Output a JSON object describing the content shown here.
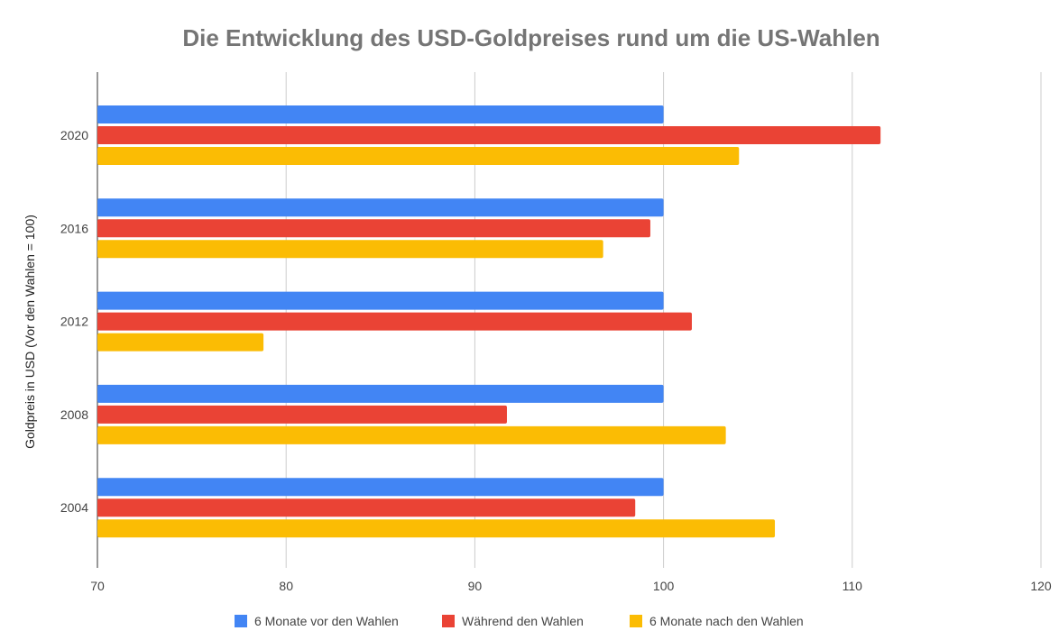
{
  "chart_data": {
    "type": "bar",
    "orientation": "horizontal",
    "title": "Die Entwicklung des USD-Goldpreises rund um die US-Wahlen",
    "xlabel": "",
    "ylabel": "Goldpreis in USD (Vor den Wahlen = 100)",
    "xlim": [
      70,
      120
    ],
    "xticks": [
      70,
      80,
      90,
      100,
      110,
      120
    ],
    "grid": true,
    "legend_position": "bottom",
    "categories": [
      "2020",
      "2016",
      "2012",
      "2008",
      "2004"
    ],
    "series": [
      {
        "name": "6 Monate vor den Wahlen",
        "color": "#4285f4",
        "values": [
          100,
          100,
          100,
          100,
          100
        ]
      },
      {
        "name": "Während den Wahlen",
        "color": "#ea4335",
        "values": [
          111.5,
          99.3,
          101.5,
          91.7,
          98.5
        ]
      },
      {
        "name": "6 Monate nach den Wahlen",
        "color": "#fbbc04",
        "values": [
          104.0,
          96.8,
          78.8,
          103.3,
          105.9
        ]
      }
    ]
  }
}
